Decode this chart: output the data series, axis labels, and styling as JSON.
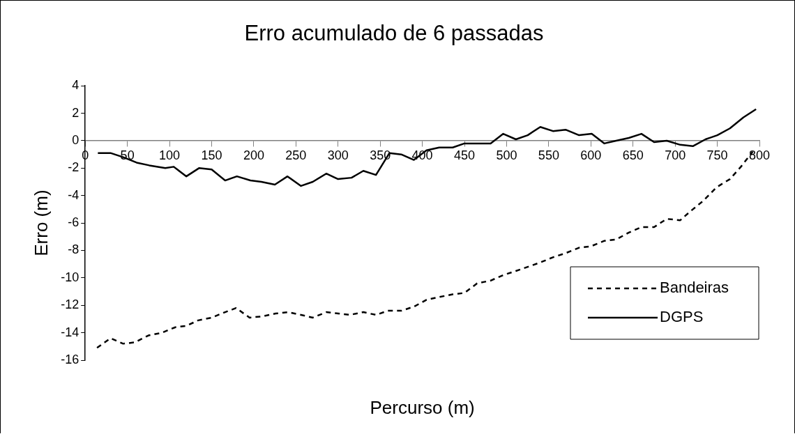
{
  "chart_data": {
    "type": "line",
    "title": "Erro acumulado de 6 passadas",
    "xlabel": "Percurso (m)",
    "ylabel": "Erro (m)",
    "xlim": [
      0,
      800
    ],
    "xticks": [
      0,
      50,
      100,
      150,
      200,
      250,
      300,
      350,
      400,
      450,
      500,
      550,
      600,
      650,
      700,
      750,
      800
    ],
    "ylim": [
      -16,
      4
    ],
    "yticks": [
      4,
      2,
      0,
      -2,
      -4,
      -6,
      -8,
      -10,
      -12,
      -14,
      -16
    ],
    "grid": false,
    "legend": "bottom right",
    "marker": "none",
    "series": [
      {
        "name": "Bandeiras",
        "color": "#000000",
        "line_style": "dashed",
        "x": [
          14,
          30,
          45,
          59,
          75,
          91,
          107,
          120,
          134,
          150,
          166,
          179,
          195,
          211,
          226,
          241,
          256,
          270,
          286,
          300,
          314,
          330,
          345,
          359,
          375,
          390,
          405,
          420,
          436,
          450,
          465,
          481,
          496,
          511,
          525,
          539,
          555,
          570,
          586,
          600,
          616,
          630,
          645,
          660,
          675,
          690,
          706,
          719,
          733,
          749,
          765,
          778,
          792
        ],
        "values": [
          -15.1,
          -14.4,
          -14.8,
          -14.7,
          -14.2,
          -14.0,
          -13.6,
          -13.5,
          -13.1,
          -12.9,
          -12.5,
          -12.2,
          -12.9,
          -12.8,
          -12.6,
          -12.5,
          -12.7,
          -12.9,
          -12.5,
          -12.6,
          -12.7,
          -12.5,
          -12.7,
          -12.4,
          -12.4,
          -12.1,
          -11.6,
          -11.4,
          -11.2,
          -11.1,
          -10.4,
          -10.2,
          -9.8,
          -9.5,
          -9.2,
          -8.9,
          -8.5,
          -8.2,
          -7.8,
          -7.7,
          -7.3,
          -7.2,
          -6.7,
          -6.3,
          -6.3,
          -5.7,
          -5.8,
          -5.1,
          -4.4,
          -3.4,
          -2.8,
          -1.9,
          -0.8
        ]
      },
      {
        "name": "DGPS",
        "color": "#000000",
        "line_style": "solid",
        "x": [
          15,
          30,
          45,
          61,
          76,
          95,
          105,
          120,
          135,
          150,
          166,
          180,
          196,
          209,
          225,
          240,
          256,
          270,
          286,
          300,
          316,
          330,
          345,
          361,
          375,
          390,
          405,
          420,
          436,
          450,
          465,
          481,
          496,
          511,
          525,
          540,
          555,
          570,
          586,
          601,
          616,
          630,
          645,
          660,
          675,
          690,
          706,
          721,
          736,
          750,
          765,
          781,
          796
        ],
        "values": [
          -0.9,
          -0.9,
          -1.2,
          -1.6,
          -1.8,
          -2.0,
          -1.9,
          -2.6,
          -2.0,
          -2.1,
          -2.9,
          -2.6,
          -2.9,
          -3.0,
          -3.2,
          -2.6,
          -3.3,
          -3.0,
          -2.4,
          -2.8,
          -2.7,
          -2.2,
          -2.5,
          -0.9,
          -1.0,
          -1.4,
          -0.7,
          -0.5,
          -0.5,
          -0.2,
          -0.2,
          -0.2,
          0.5,
          0.1,
          0.4,
          1.0,
          0.7,
          0.8,
          0.4,
          0.5,
          -0.2,
          0.0,
          0.2,
          0.5,
          -0.1,
          0.0,
          -0.3,
          -0.4,
          0.1,
          0.4,
          0.9,
          1.7,
          2.3
        ]
      }
    ]
  }
}
